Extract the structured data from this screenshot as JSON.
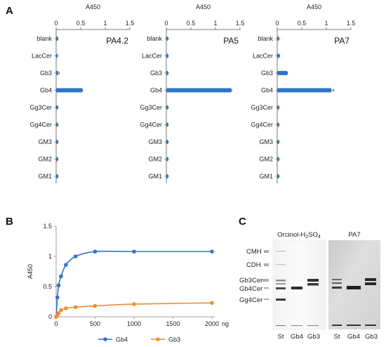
{
  "panels": {
    "a": "A",
    "b": "B",
    "c": "C"
  },
  "chart_data": [
    {
      "type": "bar",
      "orientation": "horizontal",
      "title": "PA4.2",
      "xlabel": "A450",
      "xlim": [
        0,
        1.5
      ],
      "xticks": [
        0,
        0.5,
        1,
        1.5
      ],
      "xtick_labels": [
        "0",
        "0.5",
        "1",
        "1.5"
      ],
      "categories": [
        "blank",
        "LacCer",
        "Gb3",
        "Gb4",
        "Gg3Cer",
        "Gg4Cer",
        "GM3",
        "GM2",
        "GM1"
      ],
      "values": [
        0.03,
        0.02,
        0.04,
        0.53,
        0.03,
        0.03,
        0.03,
        0.03,
        0.03
      ],
      "errors": [
        0.01,
        0.01,
        0.02,
        0.01,
        0.01,
        0.01,
        0.01,
        0.01,
        0.01
      ],
      "color": "#2E75C6"
    },
    {
      "type": "bar",
      "orientation": "horizontal",
      "title": "PA5",
      "xlabel": "A450",
      "xlim": [
        0,
        1.5
      ],
      "xticks": [
        0,
        0.5,
        1,
        1.5
      ],
      "xtick_labels": [
        "0",
        "0.5",
        "1",
        "1.5"
      ],
      "categories": [
        "blank",
        "LacCer",
        "Gb3",
        "Gb4",
        "Gg3Cer",
        "Gg4Cer",
        "GM3",
        "GM2",
        "GM1"
      ],
      "values": [
        0.03,
        0.03,
        0.03,
        1.32,
        0.03,
        0.03,
        0.03,
        0.03,
        0.03
      ],
      "errors": [
        0.01,
        0.01,
        0.01,
        0.01,
        0.01,
        0.01,
        0.01,
        0.01,
        0.01
      ],
      "color": "#2E75C6"
    },
    {
      "type": "bar",
      "orientation": "horizontal",
      "title": "PA7",
      "xlabel": "A450",
      "xlim": [
        0,
        1.5
      ],
      "xticks": [
        0,
        0.5,
        1,
        1.5
      ],
      "xtick_labels": [
        "0",
        "0.5",
        "1",
        "1.5"
      ],
      "categories": [
        "blank",
        "LacCer",
        "Gb3",
        "Gb4",
        "Gg3Cer",
        "Gg4Cer",
        "GM3",
        "GM2",
        "GM1"
      ],
      "values": [
        0.03,
        0.04,
        0.2,
        1.1,
        0.03,
        0.03,
        0.03,
        0.03,
        0.03
      ],
      "errors": [
        0.01,
        0.01,
        0.01,
        0.05,
        0.01,
        0.01,
        0.01,
        0.01,
        0.01
      ],
      "color": "#2E75C6"
    },
    {
      "type": "line",
      "ylabel": "A450",
      "xunit": "ng",
      "xlim": [
        0,
        2000
      ],
      "ylim": [
        0,
        1.5
      ],
      "xticks": [
        0,
        500,
        1000,
        1500,
        2000
      ],
      "xtick_labels": [
        "0",
        "500",
        "1000",
        "1500",
        "2000"
      ],
      "yticks": [
        0,
        0.5,
        1,
        1.5
      ],
      "ytick_labels": [
        "0",
        "0.5",
        "1",
        "1.5"
      ],
      "legend_position": "bottom",
      "series": [
        {
          "name": "Gb4",
          "color": "#2E75C6",
          "x": [
            0,
            15.6,
            31.3,
            62.5,
            125,
            250,
            500,
            1000,
            2000
          ],
          "y": [
            0.0,
            0.32,
            0.52,
            0.67,
            0.86,
            1.0,
            1.08,
            1.08,
            1.08
          ]
        },
        {
          "name": "Gb3",
          "color": "#F28C30",
          "x": [
            0,
            15.6,
            31.3,
            62.5,
            125,
            250,
            500,
            1000,
            2000
          ],
          "y": [
            0.0,
            0.03,
            0.06,
            0.11,
            0.14,
            0.16,
            0.18,
            0.21,
            0.23
          ]
        }
      ]
    }
  ],
  "blot": {
    "title_left_main": "Orcinol-H",
    "title_left_sub1": "2",
    "title_left_mid": "SO",
    "title_left_sub2": "4",
    "title_right": "PA7",
    "markers": [
      "CMH",
      "CDH",
      "Gb3Cer",
      "Gb4Cer",
      "Gg4Cer"
    ],
    "lanes_left": [
      "St",
      "Gb4",
      "Gb3"
    ],
    "lanes_right": [
      "St",
      "Gb4",
      "Gb3"
    ]
  }
}
